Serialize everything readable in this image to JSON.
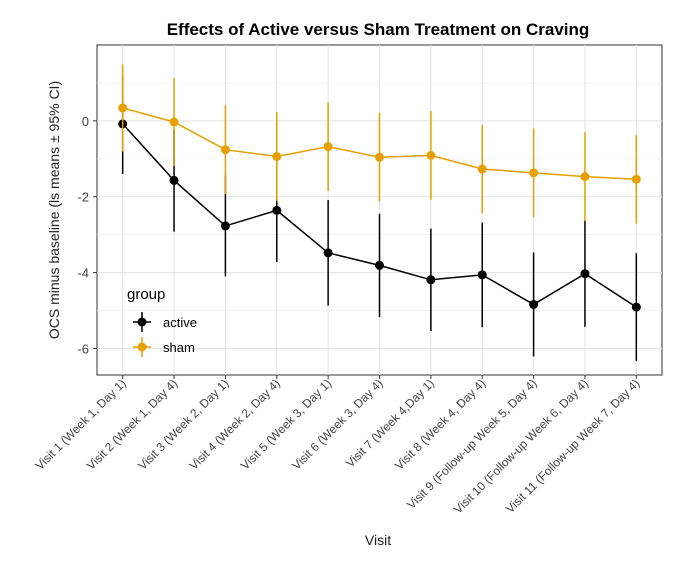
{
  "chart_data": {
    "type": "line",
    "title": "Effects of Active versus Sham Treatment on Craving",
    "xlabel": "Visit",
    "ylabel": "OCS minus baseline (ls means ± 95% CI)",
    "ylim": [
      -6.7,
      2.0
    ],
    "yticks": [
      0,
      -2,
      -4,
      -6
    ],
    "grid": true,
    "legend": {
      "title": "group",
      "position": "bottom-left"
    },
    "categories": [
      "Visit 1 (Week 1, Day 1)",
      "Visit 2 (Week 1, Day 4)",
      "Visit 3 (Week 2, Day 1)",
      "Visit 4 (Week 2, Day 4)",
      "Visit 5 (Week 3, Day 1)",
      "Visit 6 (Week 3, Day 4)",
      "Visit 7 (Week 4,Day 1)",
      "Visit 8 (Week 4, Day 4)",
      "Visit 9 (Follow-up Week 5, Day 4)",
      "Visit 10 (Follow-up Week 6, Day 4)",
      "Visit 11 (Follow-up Week 7, Day 4)"
    ],
    "series": [
      {
        "name": "active",
        "color": "#000000",
        "values": [
          -0.08,
          -1.57,
          -2.77,
          -2.36,
          -3.48,
          -3.81,
          -4.19,
          -4.06,
          -4.84,
          -4.03,
          -4.91
        ],
        "lower": [
          -1.4,
          -2.92,
          -4.1,
          -3.72,
          -4.87,
          -5.17,
          -5.54,
          -5.44,
          -6.21,
          -5.43,
          -6.33
        ],
        "upper": [
          1.24,
          -0.22,
          -1.44,
          -1.0,
          -2.09,
          -2.45,
          -2.84,
          -2.68,
          -3.47,
          -2.63,
          -3.49
        ]
      },
      {
        "name": "sham",
        "color": "#E69F00",
        "values": [
          0.34,
          -0.03,
          -0.76,
          -0.94,
          -0.68,
          -0.96,
          -0.91,
          -1.27,
          -1.37,
          -1.47,
          -1.54
        ],
        "lower": [
          -0.81,
          -1.19,
          -1.93,
          -2.11,
          -1.85,
          -2.13,
          -2.08,
          -2.44,
          -2.54,
          -2.64,
          -2.71
        ],
        "upper": [
          1.49,
          1.13,
          0.41,
          0.23,
          0.49,
          0.21,
          0.26,
          -0.1,
          -0.2,
          -0.3,
          -0.37
        ]
      }
    ]
  }
}
